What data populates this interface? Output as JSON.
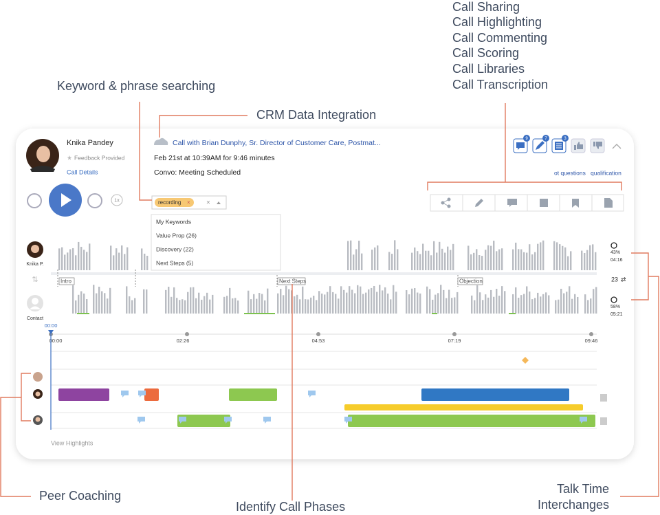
{
  "annotations": {
    "call_features": [
      "Call Sharing",
      "Call Highlighting",
      "Call Commenting",
      "Call Scoring",
      "Call Libraries",
      "Call Transcription"
    ],
    "keyword_search": "Keyword & phrase searching",
    "crm": "CRM Data Integration",
    "peer_coaching": "Peer Coaching",
    "call_phases": "Identify Call Phases",
    "talk_time": [
      "Talk Time",
      "Interchanges"
    ]
  },
  "call": {
    "rep_name": "Knika Pandey",
    "feedback": "Feedback Provided",
    "details_link": "Call Details",
    "title": "Call with Brian Dunphy, Sr. Director of Customer Care, Postmat...",
    "date": "Feb 21st at 10:39AM for 9:46 minutes",
    "outcome": "Convo: Meeting Scheduled",
    "badges": [
      "9",
      "7",
      "3"
    ],
    "topics": [
      "ot questions",
      "qualification"
    ],
    "speed": "1x",
    "search_chip": "recording",
    "clear": "×",
    "dropdown": [
      "My Keywords",
      "Value Prop (26)",
      "Discovery (22)",
      "Next Steps (5)"
    ],
    "speakers": [
      "Knika P.",
      "Contact"
    ],
    "phases": [
      "Intro",
      "Next Steps",
      "Objection"
    ],
    "rep_stats": [
      "43%",
      "04:16"
    ],
    "interchanges": "23",
    "contact_stats": [
      "58%",
      "05:21"
    ],
    "cursor_time": "00:00",
    "timeline_ticks": [
      "00:00",
      "02:26",
      "04:53",
      "07:19",
      "09:46"
    ],
    "view_highlights": "View Highlights"
  }
}
